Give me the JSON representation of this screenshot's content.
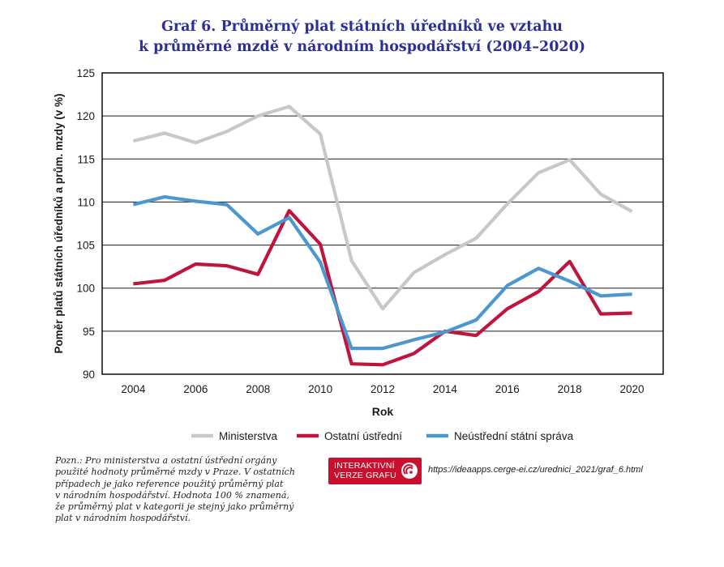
{
  "header": {
    "title_line1": "Graf 6. Průměrný plat státních úředníků ve vztahu",
    "title_line2": "k průměrné mzdě v národním hospodářství (2004–2020)"
  },
  "chart_data": {
    "type": "line",
    "x": [
      2004,
      2005,
      2006,
      2007,
      2008,
      2009,
      2010,
      2011,
      2012,
      2013,
      2014,
      2015,
      2016,
      2017,
      2018,
      2019,
      2020
    ],
    "series": [
      {
        "name": "Ministerstva",
        "color": "#c8c8c8",
        "values": [
          117.1,
          118.0,
          116.9,
          118.2,
          120.0,
          121.1,
          117.9,
          103.2,
          97.6,
          101.8,
          103.9,
          105.8,
          109.8,
          113.4,
          114.9,
          110.9,
          108.9
        ]
      },
      {
        "name": "Ostatní ústřední",
        "color": "#c0143c",
        "values": [
          100.5,
          100.9,
          102.8,
          102.6,
          101.6,
          109.0,
          105.1,
          91.2,
          91.1,
          92.4,
          95.0,
          94.5,
          97.6,
          99.6,
          103.1,
          97.0,
          97.1
        ]
      },
      {
        "name": "Neústřední státní správa",
        "color": "#4b97cf",
        "values": [
          109.7,
          110.6,
          110.1,
          109.7,
          106.3,
          108.2,
          103.0,
          93.0,
          93.0,
          94.0,
          94.9,
          96.3,
          100.3,
          102.3,
          100.8,
          99.1,
          99.3
        ]
      }
    ],
    "xticks": [
      "2004",
      "2006",
      "2008",
      "2010",
      "2012",
      "2014",
      "2016",
      "2018",
      "2020"
    ],
    "yticks": [
      "90",
      "95",
      "100",
      "105",
      "110",
      "115",
      "120",
      "125"
    ],
    "xlim": [
      2003,
      2021
    ],
    "ylim": [
      90,
      125
    ],
    "xlabel": "Rok",
    "ylabel": "Poměr platů státních úředníků a prům. mzdy (v %)",
    "grid": "horizontal",
    "legend_position": "bottom"
  },
  "footer": {
    "note_lines": [
      "Pozn.: Pro ministerstva a ostatní ústřední orgány",
      "použité hodnoty průměrné mzdy v Praze. V ostatních",
      "případech je jako reference použitý průměrný plat",
      "v národním hospodářství. Hodnota 100 % znamená,",
      "že průměrný plat v kategorii je stejný jako průměrný",
      "plat v národním hospodářství."
    ],
    "badge_line1": "INTERAKTIVNÍ",
    "badge_line2": "VERZE GRAFU",
    "badge_icon": "radar-signal-icon",
    "url": "https://ideaapps.cerge-ei.cz/urednici_2021/graf_6.html"
  }
}
